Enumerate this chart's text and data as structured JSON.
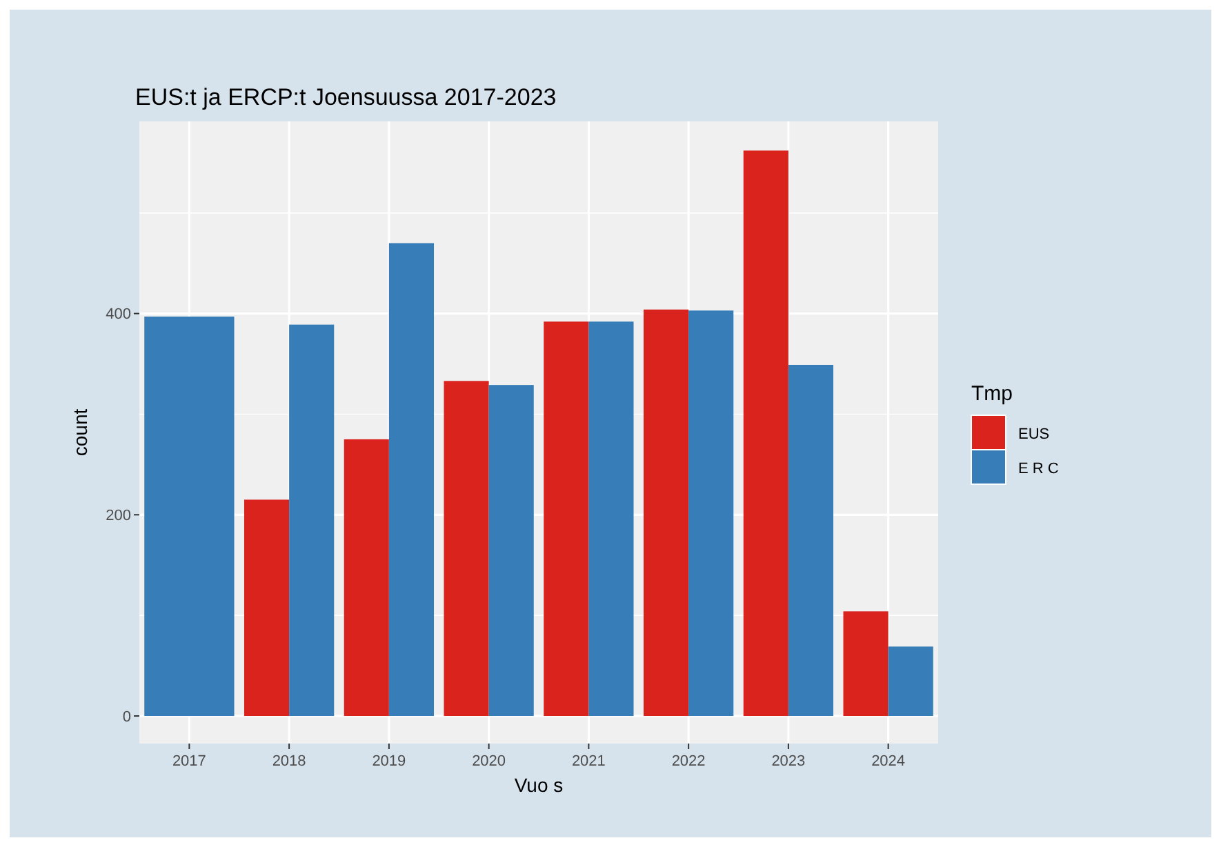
{
  "chart_data": {
    "type": "bar",
    "title": "EUS:t ja ERCP:t Joensuussa 2017-2023",
    "xlabel": "Vuo s",
    "ylabel": "count",
    "legend_title": "Tmp",
    "categories": [
      "2017",
      "2018",
      "2019",
      "2020",
      "2021",
      "2022",
      "2023",
      "2024"
    ],
    "series": [
      {
        "name": "EUS",
        "color": "#da231c",
        "values": [
          null,
          215,
          275,
          333,
          392,
          404,
          562,
          104
        ]
      },
      {
        "name": "E R C",
        "color": "#377eb8",
        "values": [
          397,
          389,
          470,
          329,
          392,
          403,
          349,
          69
        ]
      }
    ],
    "ylim": [
      -27.4,
      591
    ],
    "yticks": [
      0,
      {
        "value": 100,
        "label": null
      },
      200,
      {
        "value": 300,
        "label": null
      },
      400,
      {
        "value": 500,
        "label": null
      }
    ],
    "grid": true,
    "legend": "right"
  }
}
